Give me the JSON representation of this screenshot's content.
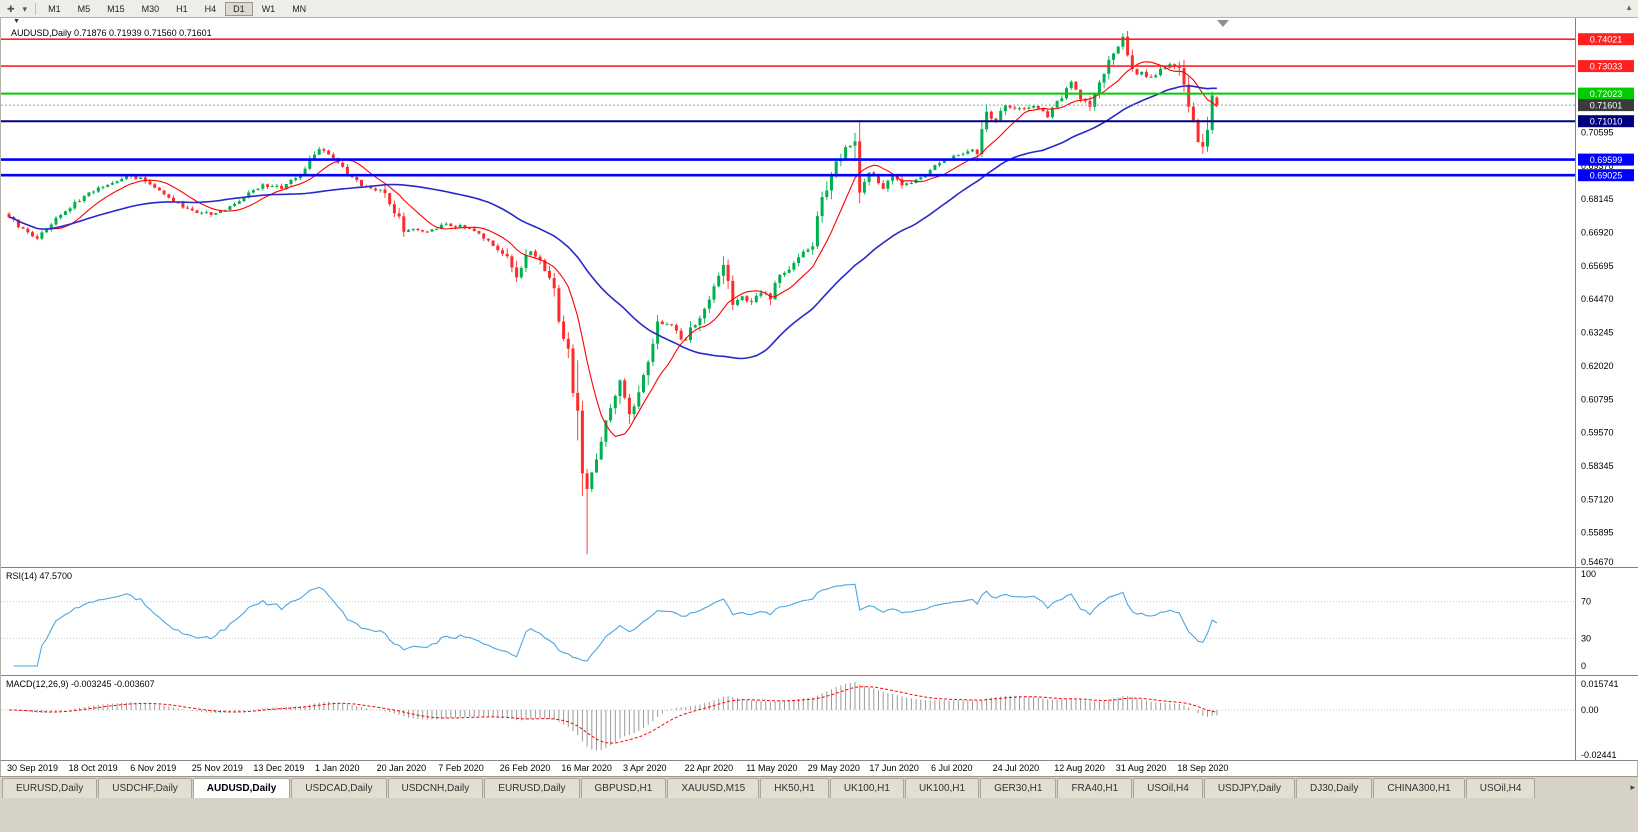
{
  "icons": {
    "cursor": "✚",
    "dropdown": "▾",
    "toolbar_scroll": "▲",
    "menu_down": "▼",
    "tab_scroll": "▸"
  },
  "toolbar": {
    "timeframes": [
      "M1",
      "M5",
      "M15",
      "M30",
      "H1",
      "H4",
      "D1",
      "W1",
      "MN"
    ],
    "active_timeframe": "D1"
  },
  "chart": {
    "symbol": "AUDUSD",
    "period": "Daily",
    "title_line": "AUDUSD,Daily 0.71876 0.71939 0.71560 0.71601"
  },
  "chart_data": {
    "type": "candlestick",
    "symbol": "AUDUSD",
    "timeframe": "Daily",
    "open": 0.71876,
    "high": 0.71939,
    "low": 0.7156,
    "close": 0.71601,
    "bars": 258,
    "y_range": [
      0.5467,
      0.748
    ],
    "y_ticks": [
      0.70595,
      0.6937,
      0.68145,
      0.6692,
      0.65695,
      0.6447,
      0.63245,
      0.6202,
      0.60795,
      0.5957,
      0.58345,
      0.5712,
      0.55895,
      0.5467
    ],
    "x_labels": [
      "30 Sep 2019",
      "18 Oct 2019",
      "6 Nov 2019",
      "25 Nov 2019",
      "13 Dec 2019",
      "1 Jan 2020",
      "20 Jan 2020",
      "7 Feb 2020",
      "26 Feb 2020",
      "16 Mar 2020",
      "3 Apr 2020",
      "22 Apr 2020",
      "11 May 2020",
      "29 May 2020",
      "17 Jun 2020",
      "6 Jul 2020",
      "24 Jul 2020",
      "12 Aug 2020",
      "31 Aug 2020",
      "18 Sep 2020"
    ],
    "candle_colors": {
      "up": "#00b050",
      "down": "#ff2b2b"
    },
    "moving_averages": [
      {
        "period": 10,
        "color": "#ff0000"
      },
      {
        "period": 40,
        "color": "#2929c8"
      }
    ],
    "hlines": [
      {
        "price": 0.74021,
        "label": "0.74021",
        "color": "#ff2020",
        "width": 1.6
      },
      {
        "price": 0.73033,
        "label": "0.73033",
        "color": "#ff2020",
        "width": 1.6
      },
      {
        "price": 0.72023,
        "label": "0.72023",
        "color": "#00cc00",
        "width": 2
      },
      {
        "price": 0.7101,
        "label": "0.71010",
        "color": "#000080",
        "width": 2
      },
      {
        "price": 0.69599,
        "label": "0.69599",
        "color": "#0000ff",
        "width": 2.6
      },
      {
        "price": 0.69025,
        "label": "0.69025",
        "color": "#0000ff",
        "width": 2.6
      }
    ],
    "current_price": {
      "value": 0.71601,
      "label": "0.71601",
      "badge_color": "#3b3b3b"
    },
    "price_keypoints": [
      [
        0,
        0.6755
      ],
      [
        3,
        0.67
      ],
      [
        6,
        0.6672
      ],
      [
        10,
        0.674
      ],
      [
        14,
        0.68
      ],
      [
        18,
        0.6845
      ],
      [
        22,
        0.6875
      ],
      [
        25,
        0.69
      ],
      [
        28,
        0.689
      ],
      [
        32,
        0.6845
      ],
      [
        36,
        0.6795
      ],
      [
        40,
        0.677
      ],
      [
        44,
        0.6758
      ],
      [
        48,
        0.68
      ],
      [
        54,
        0.6868
      ],
      [
        58,
        0.6855
      ],
      [
        62,
        0.6905
      ],
      [
        66,
        0.7005
      ],
      [
        68,
        0.6985
      ],
      [
        72,
        0.6905
      ],
      [
        76,
        0.6855
      ],
      [
        80,
        0.6845
      ],
      [
        84,
        0.6705
      ],
      [
        88,
        0.6695
      ],
      [
        93,
        0.6722
      ],
      [
        97,
        0.6712
      ],
      [
        100,
        0.6682
      ],
      [
        103,
        0.6645
      ],
      [
        106,
        0.6605
      ],
      [
        108,
        0.652
      ],
      [
        110,
        0.663
      ],
      [
        113,
        0.659
      ],
      [
        116,
        0.648
      ],
      [
        118,
        0.631
      ],
      [
        119,
        0.622
      ],
      [
        121,
        0.599
      ],
      [
        122,
        0.577
      ],
      [
        123,
        0.5745
      ],
      [
        124,
        0.581
      ],
      [
        126,
        0.5935
      ],
      [
        128,
        0.6035
      ],
      [
        130,
        0.613
      ],
      [
        131,
        0.6075
      ],
      [
        132,
        0.6005
      ],
      [
        134,
        0.609
      ],
      [
        136,
        0.6205
      ],
      [
        138,
        0.635
      ],
      [
        141,
        0.6362
      ],
      [
        143,
        0.6305
      ],
      [
        144,
        0.6282
      ],
      [
        145,
        0.633
      ],
      [
        147,
        0.6365
      ],
      [
        150,
        0.6505
      ],
      [
        152,
        0.6552
      ],
      [
        154,
        0.6432
      ],
      [
        156,
        0.6452
      ],
      [
        158,
        0.6432
      ],
      [
        160,
        0.6472
      ],
      [
        162,
        0.6452
      ],
      [
        164,
        0.6532
      ],
      [
        166,
        0.6552
      ],
      [
        168,
        0.6602
      ],
      [
        171,
        0.6652
      ],
      [
        173,
        0.68
      ],
      [
        175,
        0.6922
      ],
      [
        177,
        0.6972
      ],
      [
        178,
        0.7012
      ],
      [
        180,
        0.7002
      ],
      [
        181,
        0.6852
      ],
      [
        183,
        0.6922
      ],
      [
        186,
        0.6852
      ],
      [
        188,
        0.6907
      ],
      [
        190,
        0.6862
      ],
      [
        193,
        0.6882
      ],
      [
        195,
        0.6902
      ],
      [
        198,
        0.6952
      ],
      [
        200,
        0.6967
      ],
      [
        203,
        0.6977
      ],
      [
        206,
        0.7002
      ],
      [
        208,
        0.7132
      ],
      [
        210,
        0.7102
      ],
      [
        212,
        0.7157
      ],
      [
        215,
        0.7147
      ],
      [
        218,
        0.7157
      ],
      [
        221,
        0.7122
      ],
      [
        223,
        0.7167
      ],
      [
        226,
        0.7247
      ],
      [
        228,
        0.7192
      ],
      [
        230,
        0.7162
      ],
      [
        233,
        0.7272
      ],
      [
        235,
        0.7367
      ],
      [
        236,
        0.7377
      ],
      [
        237,
        0.7392
      ],
      [
        238,
        0.7337
      ],
      [
        239,
        0.7272
      ],
      [
        241,
        0.7282
      ],
      [
        243,
        0.7257
      ],
      [
        245,
        0.7297
      ],
      [
        247,
        0.7307
      ],
      [
        249,
        0.7292
      ],
      [
        250,
        0.7227
      ],
      [
        251,
        0.7172
      ],
      [
        252,
        0.7127
      ],
      [
        253,
        0.7052
      ],
      [
        254,
        0.7032
      ],
      [
        255,
        0.7095
      ],
      [
        256,
        0.7185
      ],
      [
        257,
        0.71601
      ]
    ],
    "wick_overrides": [
      [
        123,
        "low",
        0.551
      ],
      [
        237,
        "high",
        0.7414
      ],
      [
        254,
        "low",
        0.7006
      ]
    ],
    "indicators": {
      "rsi": {
        "period": 14,
        "title_line": "RSI(14) 47.5700",
        "value": 47.57,
        "levels": [
          100,
          70,
          30,
          0
        ],
        "line_color": "#4aa7e0"
      },
      "macd": {
        "fast": 12,
        "slow": 26,
        "signal": 9,
        "title_line": "MACD(12,26,9) -0.003245 -0.003607",
        "main_value": -0.003245,
        "signal_value": -0.003607,
        "range": [
          -0.02441,
          0.015741
        ],
        "axis_labels": [
          "0.015741",
          "0.00",
          "-0.02441"
        ],
        "hist_color": "#9a9a9a",
        "signal_color": "#ff0000"
      }
    }
  },
  "bottom_tabs": {
    "active_index": 2,
    "tabs": [
      "EURUSD,Daily",
      "USDCHF,Daily",
      "AUDUSD,Daily",
      "USDCAD,Daily",
      "USDCNH,Daily",
      "EURUSD,Daily",
      "GBPUSD,H1",
      "XAUUSD,M15",
      "HK50,H1",
      "UK100,H1",
      "UK100,H1",
      "GER30,H1",
      "FRA40,H1",
      "USOil,H4",
      "USDJPY,Daily",
      "DJ30,Daily",
      "CHINA300,H1",
      "USOil,H4"
    ]
  }
}
